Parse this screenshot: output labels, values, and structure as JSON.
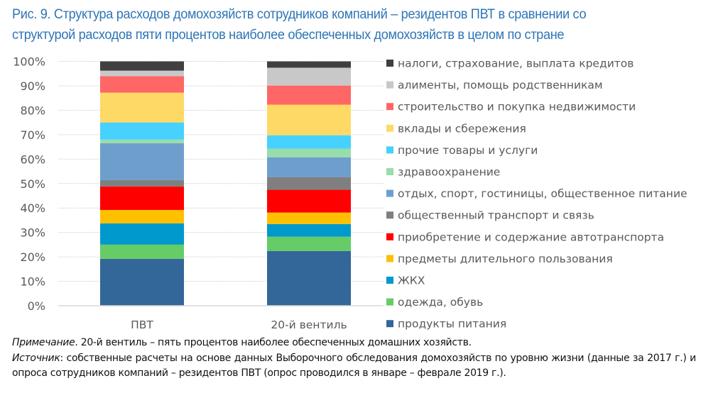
{
  "title": {
    "line1": "Рис. 9. Структура расходов домохозяйств сотрудников компаний – резидентов ПВТ в сравнении со",
    "line2": "структурой расходов пяти процентов наиболее обеспеченных домохозяйств в целом по стране"
  },
  "chart_data": {
    "type": "bar",
    "stacked": true,
    "orientation": "vertical",
    "title": "Рис. 9. Структура расходов домохозяйств сотрудников компаний – резидентов ПВТ в сравнении со структурой расходов пяти процентов наиболее обеспеченных домохозяйств в целом по стране",
    "xlabel": "",
    "ylabel": "",
    "categories": [
      "ПВТ",
      "20-й вентиль"
    ],
    "ylim": [
      0,
      100
    ],
    "yticks": [
      0,
      10,
      20,
      30,
      40,
      50,
      60,
      70,
      80,
      90,
      100
    ],
    "ytick_labels": [
      "0%",
      "10%",
      "20%",
      "30%",
      "40%",
      "50%",
      "60%",
      "70%",
      "80%",
      "90%",
      "100%"
    ],
    "grid": true,
    "legend_position": "right",
    "series": [
      {
        "name": "продукты питания",
        "color": "#336699",
        "values": [
          19.2,
          22.4
        ]
      },
      {
        "name": "одежда, обувь",
        "color": "#66CC66",
        "values": [
          5.8,
          5.8
        ]
      },
      {
        "name": "ЖКХ",
        "color": "#0099CC",
        "values": [
          8.7,
          5.2
        ]
      },
      {
        "name": "предметы длительного пользования",
        "color": "#FFC000",
        "values": [
          5.5,
          4.7
        ]
      },
      {
        "name": "приобретение и содержание автотранспорта",
        "color": "#FF0000",
        "values": [
          9.6,
          9.3
        ]
      },
      {
        "name": "общественный транспорт и связь",
        "color": "#7F7F7F",
        "values": [
          2.6,
          5.2
        ]
      },
      {
        "name": "отдых, спорт, гостиницы, общественное питание",
        "color": "#6E9FCC",
        "values": [
          15.1,
          8.1
        ]
      },
      {
        "name": "здравоохранение",
        "color": "#99DDAA",
        "values": [
          1.5,
          3.5
        ]
      },
      {
        "name": "прочие товары и услуги",
        "color": "#47D1FF",
        "values": [
          7.0,
          5.5
        ]
      },
      {
        "name": "вклады и сбережения",
        "color": "#FFD966",
        "values": [
          12.2,
          12.5
        ]
      },
      {
        "name": "строительство и покупка недвижимости",
        "color": "#FF6666",
        "values": [
          6.7,
          7.8
        ]
      },
      {
        "name": "алименты, помощь родственникам",
        "color": "#C8C8C8",
        "values": [
          2.3,
          7.3
        ]
      },
      {
        "name": "налоги, страхование, выплата кредитов",
        "color": "#404040",
        "values": [
          3.8,
          2.6
        ]
      }
    ]
  },
  "notes": {
    "note_label": "Примечание",
    "note_text": ". 20-й вентиль – пять процентов наиболее обеспеченных домашних хозяйств.",
    "source_label": "Источник",
    "source_text": ": собственные расчеты на основе данных Выборочного обследования домохозяйств по уровню жизни (данные за 2017 г.) и опроса сотрудников компаний – резидентов ПВТ (опрос проводился в январе – феврале 2019 г.)."
  }
}
